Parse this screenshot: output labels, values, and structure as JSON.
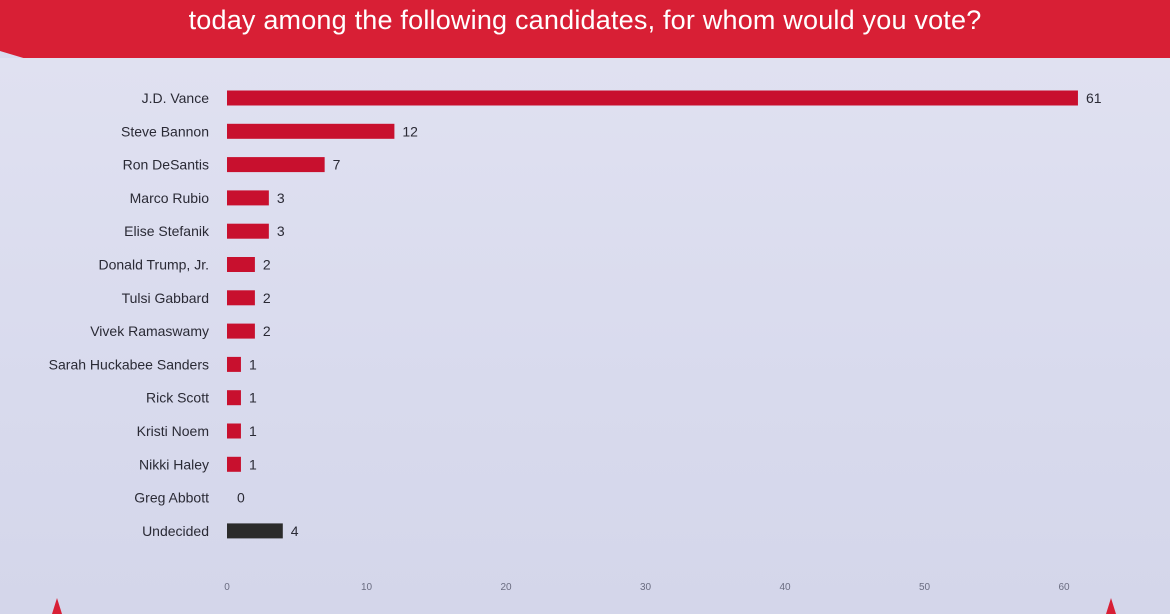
{
  "header": {
    "question_line": "today among the following candidates, for whom would you vote?"
  },
  "colors": {
    "banner": "#d81f35",
    "bar": "#c8102e",
    "undecided_bar": "#2b2b2b",
    "background": "#d9dbee"
  },
  "chart_data": {
    "type": "bar",
    "orientation": "horizontal",
    "categories": [
      "J.D. Vance",
      "Steve Bannon",
      "Ron DeSantis",
      "Marco Rubio",
      "Elise Stefanik",
      "Donald Trump, Jr.",
      "Tulsi Gabbard",
      "Vivek Ramaswamy",
      "Sarah Huckabee Sanders",
      "Rick Scott",
      "Kristi Noem",
      "Nikki Haley",
      "Greg Abbott",
      "Undecided"
    ],
    "values": [
      61,
      12,
      7,
      3,
      3,
      2,
      2,
      2,
      1,
      1,
      1,
      1,
      0,
      4
    ],
    "xlim": [
      0,
      60
    ],
    "xticks": [
      0,
      10,
      20,
      30,
      40,
      50,
      60
    ],
    "grid": false,
    "legend": "none",
    "bar_color_by_category": {
      "Undecided": "#2b2b2b"
    }
  }
}
